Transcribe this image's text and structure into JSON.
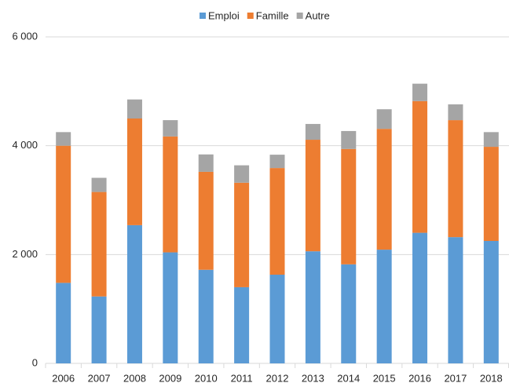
{
  "chart_data": {
    "type": "stacked_bar",
    "categories": [
      "2006",
      "2007",
      "2008",
      "2009",
      "2010",
      "2011",
      "2012",
      "2013",
      "2014",
      "2015",
      "2016",
      "2017",
      "2018"
    ],
    "series": [
      {
        "name": "Emploi",
        "color": "#5b9bd5",
        "values": [
          1480,
          1230,
          2540,
          2040,
          1720,
          1400,
          1630,
          2060,
          1820,
          2090,
          2400,
          2320,
          2250
        ]
      },
      {
        "name": "Famille",
        "color": "#ed7d31",
        "values": [
          2520,
          1920,
          1960,
          2130,
          1800,
          1920,
          1960,
          2050,
          2120,
          2220,
          2420,
          2150,
          1730
        ]
      },
      {
        "name": "Autre",
        "color": "#a5a5a5",
        "values": [
          250,
          260,
          350,
          300,
          320,
          320,
          245,
          290,
          330,
          360,
          320,
          290,
          270
        ]
      }
    ],
    "ylim": [
      0,
      6000
    ],
    "yticks": [
      0,
      {
        "value": 2000,
        "label": "2 000"
      },
      {
        "value": 4000,
        "label": "4 000"
      },
      {
        "value": 6000,
        "label": "6 000"
      }
    ],
    "grid": true,
    "legend": "top"
  }
}
